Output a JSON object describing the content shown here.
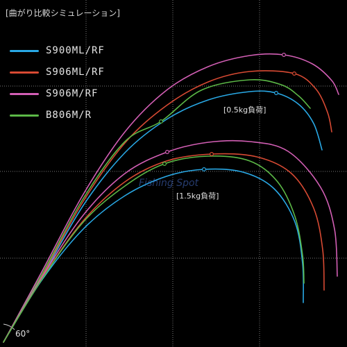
{
  "title": "[曲がり比較シミュレーション]",
  "watermark": "Fishing Spot",
  "angle_label": "60°",
  "colors": {
    "grid": "#7a7a7a",
    "background": "#000000"
  },
  "chart_data": {
    "type": "line",
    "title": "[曲がり比較シミュレーション]",
    "xlabel": "",
    "ylabel": "",
    "grid": true,
    "legend_position": "top-left",
    "annotations": [
      "[0.5kg負荷]",
      "[1.5kg負荷]",
      "60°"
    ],
    "series": [
      {
        "name": "S900ML/RF",
        "color": "#29a9e6",
        "load": "0.5kg",
        "marker": [
          398,
          134
        ],
        "points": [
          [
            5,
            493
          ],
          [
            60,
            400
          ],
          [
            120,
            296
          ],
          [
            180,
            220
          ],
          [
            240,
            172
          ],
          [
            300,
            144
          ],
          [
            360,
            132
          ],
          [
            398,
            134
          ],
          [
            430,
            150
          ],
          [
            452,
            178
          ],
          [
            464,
            216
          ]
        ]
      },
      {
        "name": "S906ML/RF",
        "color": "#d84a33",
        "load": "0.5kg",
        "marker": [
          424,
          106
        ],
        "points": [
          [
            5,
            493
          ],
          [
            60,
            398
          ],
          [
            120,
            290
          ],
          [
            180,
            206
          ],
          [
            240,
            152
          ],
          [
            300,
            118
          ],
          [
            360,
            103
          ],
          [
            424,
            106
          ],
          [
            455,
            128
          ],
          [
            472,
            162
          ],
          [
            478,
            190
          ]
        ]
      },
      {
        "name": "S906M/RF",
        "color": "#d35fb5",
        "load": "0.5kg",
        "marker": [
          409,
          79
        ],
        "points": [
          [
            5,
            493
          ],
          [
            60,
            392
          ],
          [
            120,
            280
          ],
          [
            180,
            190
          ],
          [
            240,
            130
          ],
          [
            300,
            96
          ],
          [
            360,
            80
          ],
          [
            409,
            79
          ],
          [
            450,
            92
          ],
          [
            478,
            116
          ],
          [
            488,
            136
          ]
        ]
      },
      {
        "name": "B806M/R",
        "color": "#5cb947",
        "load": "0.5kg",
        "marker": [
          232,
          175
        ],
        "points": [
          [
            5,
            493
          ],
          [
            60,
            396
          ],
          [
            120,
            286
          ],
          [
            180,
            204
          ],
          [
            232,
            175
          ],
          [
            290,
            130
          ],
          [
            360,
            115
          ],
          [
            405,
            122
          ],
          [
            430,
            138
          ],
          [
            447,
            156
          ]
        ]
      },
      {
        "name": "S900ML/RF",
        "color": "#29a9e6",
        "load": "1.5kg",
        "marker": [
          294,
          244
        ],
        "points": [
          [
            5,
            493
          ],
          [
            60,
            404
          ],
          [
            120,
            330
          ],
          [
            180,
            282
          ],
          [
            240,
            254
          ],
          [
            294,
            244
          ],
          [
            350,
            248
          ],
          [
            395,
            272
          ],
          [
            425,
            320
          ],
          [
            436,
            380
          ],
          [
            437,
            436
          ]
        ]
      },
      {
        "name": "S906ML/RF",
        "color": "#d84a33",
        "load": "1.5kg",
        "marker": [
          305,
          222
        ],
        "points": [
          [
            5,
            493
          ],
          [
            60,
            402
          ],
          [
            120,
            318
          ],
          [
            180,
            262
          ],
          [
            240,
            232
          ],
          [
            305,
            222
          ],
          [
            370,
            226
          ],
          [
            420,
            250
          ],
          [
            452,
            300
          ],
          [
            465,
            360
          ],
          [
            467,
            418
          ]
        ]
      },
      {
        "name": "S906M/RF",
        "color": "#d35fb5",
        "load": "1.5kg",
        "marker": [
          241,
          219
        ],
        "points": [
          [
            5,
            493
          ],
          [
            60,
            400
          ],
          [
            120,
            310
          ],
          [
            180,
            250
          ],
          [
            241,
            219
          ],
          [
            300,
            205
          ],
          [
            360,
            204
          ],
          [
            415,
            218
          ],
          [
            462,
            270
          ],
          [
            482,
            330
          ],
          [
            486,
            398
          ]
        ]
      },
      {
        "name": "B806M/R",
        "color": "#5cb947",
        "load": "1.5kg",
        "marker": [
          237,
          236
        ],
        "points": [
          [
            5,
            493
          ],
          [
            60,
            403
          ],
          [
            120,
            320
          ],
          [
            180,
            268
          ],
          [
            237,
            236
          ],
          [
            300,
            225
          ],
          [
            360,
            232
          ],
          [
            400,
            262
          ],
          [
            425,
            312
          ],
          [
            436,
            368
          ],
          [
            438,
            408
          ]
        ]
      }
    ],
    "legend": [
      {
        "label": "S900ML/RF",
        "color": "#29a9e6"
      },
      {
        "label": "S906ML/RF",
        "color": "#d84a33"
      },
      {
        "label": "S906M/RF",
        "color": "#d35fb5"
      },
      {
        "label": "B806M/R",
        "color": "#5cb947"
      }
    ]
  }
}
